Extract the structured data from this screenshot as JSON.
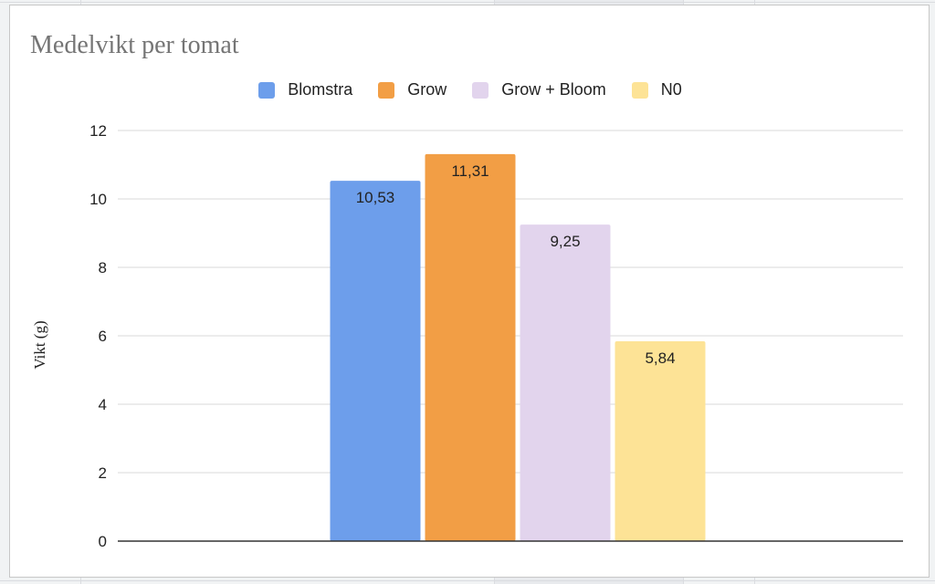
{
  "chart_data": {
    "type": "bar",
    "title": "Medelvikt per tomat",
    "xlabel": "",
    "ylabel": "Vikt (g)",
    "ylim": [
      0,
      12
    ],
    "yticks": [
      0,
      2,
      4,
      6,
      8,
      10,
      12
    ],
    "grid": true,
    "legend_position": "top",
    "categories": [
      ""
    ],
    "series": [
      {
        "name": "Blomstra",
        "values": [
          10.53
        ],
        "label": "10,53",
        "color": "#6d9eeb"
      },
      {
        "name": "Grow",
        "values": [
          11.31
        ],
        "label": "11,31",
        "color": "#f29e45"
      },
      {
        "name": "Grow + Bloom",
        "values": [
          9.25
        ],
        "label": "9,25",
        "color": "#e2d4ed"
      },
      {
        "name": "N0",
        "values": [
          5.84
        ],
        "label": "5,84",
        "color": "#fde396"
      }
    ]
  },
  "colors": {
    "gridline": "#d9d9d9",
    "axis": "#333333",
    "title": "#757575",
    "text": "#222222"
  }
}
